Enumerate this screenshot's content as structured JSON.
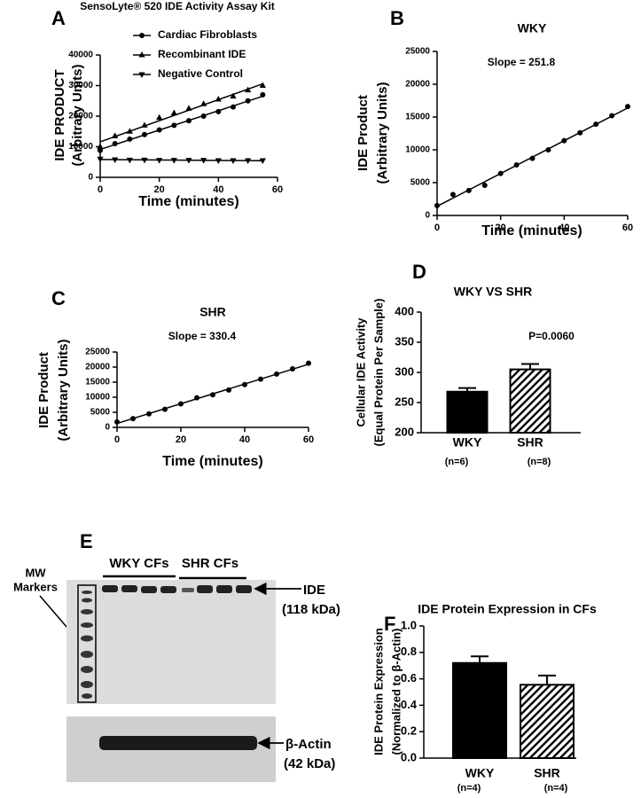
{
  "chart_data": [
    {
      "type": "scatter",
      "letter": "A",
      "title": "SensoLyte® 520 IDE Activity Assay Kit",
      "xlabel": "Time (minutes)",
      "ylabel": [
        "IDE PRODUCT",
        "(Arbitrary Units)"
      ],
      "x": [
        0,
        5,
        10,
        15,
        20,
        25,
        30,
        35,
        40,
        45,
        50,
        55
      ],
      "series": [
        {
          "name": "Cardiac Fibroblasts",
          "marker": "circle",
          "color": "#000000",
          "values": [
            8800,
            11000,
            12500,
            14000,
            15500,
            17000,
            18500,
            20000,
            21500,
            23000,
            25000,
            27000
          ]
        },
        {
          "name": "Recombinant IDE",
          "marker": "triangle-up",
          "color": "#000000",
          "values": [
            10000,
            13500,
            15000,
            17000,
            19500,
            21000,
            22500,
            24000,
            25500,
            26500,
            28500,
            30000
          ]
        },
        {
          "name": "Negative Control",
          "marker": "triangle-down",
          "color": "#000000",
          "values": [
            6000,
            5800,
            5700,
            5700,
            5600,
            5600,
            5600,
            5600,
            5500,
            5500,
            5500,
            5500
          ]
        }
      ],
      "xlim": [
        0,
        60
      ],
      "xticks": [
        0,
        20,
        40,
        60
      ],
      "ylim": [
        0,
        40000
      ],
      "yticks": [
        0,
        10000,
        20000,
        30000,
        40000
      ],
      "fit": true,
      "legend": "upper left"
    },
    {
      "type": "scatter",
      "letter": "B",
      "title": "WKY",
      "annotation": "Slope = 251.8",
      "xlabel": "Time (minutes)",
      "ylabel": [
        "IDE Product",
        "(Arbitrary Units)"
      ],
      "x": [
        0,
        5,
        10,
        15,
        20,
        25,
        30,
        35,
        40,
        45,
        50,
        55,
        60
      ],
      "series": [
        {
          "name": null,
          "marker": "circle",
          "color": "#000000",
          "values": [
            1500,
            3200,
            3800,
            4600,
            6400,
            7700,
            8700,
            10000,
            11400,
            12600,
            13900,
            15200,
            16600
          ]
        }
      ],
      "xlim": [
        0,
        60
      ],
      "xticks": [
        0,
        20,
        40,
        60
      ],
      "ylim": [
        0,
        25000
      ],
      "yticks": [
        0,
        5000,
        10000,
        15000,
        20000,
        25000
      ],
      "fit": true
    },
    {
      "type": "scatter",
      "letter": "C",
      "title": "SHR",
      "annotation": "Slope = 330.4",
      "xlabel": "Time (minutes)",
      "ylabel": [
        "IDE Product",
        "(Arbitrary Units)"
      ],
      "x": [
        0,
        5,
        10,
        15,
        20,
        25,
        30,
        35,
        40,
        45,
        50,
        55,
        60
      ],
      "series": [
        {
          "name": null,
          "marker": "circle",
          "color": "#000000",
          "values": [
            1800,
            2900,
            4500,
            6000,
            7800,
            9800,
            10800,
            12400,
            14200,
            16000,
            17700,
            19400,
            21300
          ]
        }
      ],
      "xlim": [
        0,
        60
      ],
      "xticks": [
        0,
        20,
        40,
        60
      ],
      "ylim": [
        0,
        25000
      ],
      "yticks": [
        0,
        5000,
        10000,
        15000,
        20000,
        25000
      ],
      "fit": true
    },
    {
      "type": "bar",
      "letter": "D",
      "title": "WKY VS SHR",
      "annotation": "P=0.0060",
      "ylabel": [
        "Cellular IDE Activity",
        "(Equal Protein Per Sample)"
      ],
      "categories": [
        "WKY",
        "SHR"
      ],
      "sample_sizes": [
        "(n=6)",
        "(n=8)"
      ],
      "values": [
        268,
        305
      ],
      "errors": [
        6,
        9
      ],
      "patterns": [
        "solid",
        "hatch"
      ],
      "color": "#000000",
      "ylim": [
        200,
        400
      ],
      "yticks": [
        200,
        250,
        300,
        350,
        400
      ]
    },
    {
      "type": "bar",
      "letter": "F",
      "title": "IDE Protein Expression in CFs",
      "ylabel": [
        "IDE Protein Expression",
        "(Normalized to β-Actin)"
      ],
      "categories": [
        "WKY",
        "SHR"
      ],
      "sample_sizes": [
        "(n=4)",
        "(n=4)"
      ],
      "values": [
        0.72,
        0.555
      ],
      "errors": [
        0.05,
        0.07
      ],
      "patterns": [
        "solid",
        "hatch"
      ],
      "color": "#000000",
      "ylim": [
        0,
        1
      ],
      "yticks": [
        {
          "value": 0,
          "label": "0.0"
        },
        0.2,
        0.4,
        0.6,
        0.8,
        {
          "value": 1,
          "label": "1.0"
        }
      ]
    }
  ],
  "blot": {
    "letter": "E",
    "markers": [
      "MW",
      "Markers"
    ],
    "groups": [
      "WKY CFs",
      "SHR CFs"
    ],
    "bands": [
      {
        "name": "IDE",
        "size": "(118 kDa)"
      },
      {
        "name": "β-Actin",
        "size": "(42 kDa)"
      }
    ]
  }
}
